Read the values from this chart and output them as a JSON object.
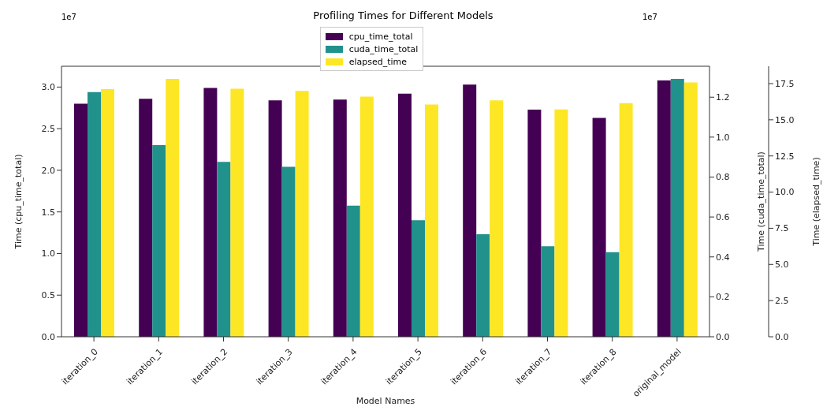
{
  "chart_data": {
    "type": "bar",
    "title": "Profiling Times for Different Models",
    "xlabel": "Model Names",
    "ylabel": "Time (cpu_time_total)",
    "y2label": "Time (cuda_time_total)",
    "y3label": "Time (elapsed_time)",
    "categories": [
      "iteration_0",
      "iteration_1",
      "iteration_2",
      "iteration_3",
      "iteration_4",
      "iteration_5",
      "iteration_6",
      "iteration_7",
      "iteration_8",
      "original_model"
    ],
    "series": [
      {
        "name": "cpu_time_total",
        "color": "#440154",
        "values": [
          2.8,
          2.86,
          2.99,
          2.84,
          2.85,
          2.92,
          3.03,
          2.73,
          2.63,
          3.08
        ]
      },
      {
        "name": "cuda_time_total",
        "color": "#21918c",
        "axis": "y2",
        "values": [
          1.226,
          0.96,
          0.876,
          0.851,
          0.657,
          0.584,
          0.514,
          0.453,
          0.424,
          1.292
        ]
      },
      {
        "name": "elapsed_time",
        "color": "#fde725",
        "axis": "y3",
        "values": [
          17.12,
          17.83,
          17.15,
          17.0,
          16.6,
          16.05,
          16.34,
          15.72,
          16.15,
          17.58
        ]
      }
    ],
    "ylim": [
      0,
      3.25
    ],
    "yticks": [
      {
        "value": 0,
        "label": "0.0"
      },
      0.5,
      {
        "value": 1,
        "label": "1.0"
      },
      1.5,
      {
        "value": 2,
        "label": "2.0"
      },
      2.5,
      {
        "value": 3,
        "label": "3.0"
      }
    ],
    "y2lim": [
      0,
      1.355
    ],
    "y2ticks": [
      {
        "value": 0,
        "label": "0.0"
      },
      0.2,
      0.4,
      0.6,
      0.8,
      {
        "value": 1,
        "label": "1.0"
      },
      1.2
    ],
    "y3lim": [
      0,
      18.7
    ],
    "y3ticks": [
      {
        "value": 0,
        "label": "0.0"
      },
      2.5,
      {
        "value": 5,
        "label": "5.0"
      },
      7.5,
      {
        "value": 10,
        "label": "10.0"
      },
      12.5,
      {
        "value": 15,
        "label": "15.0"
      },
      17.5
    ],
    "annotations": [
      "1e7",
      "1e7"
    ],
    "legend": "top",
    "grid": false
  }
}
